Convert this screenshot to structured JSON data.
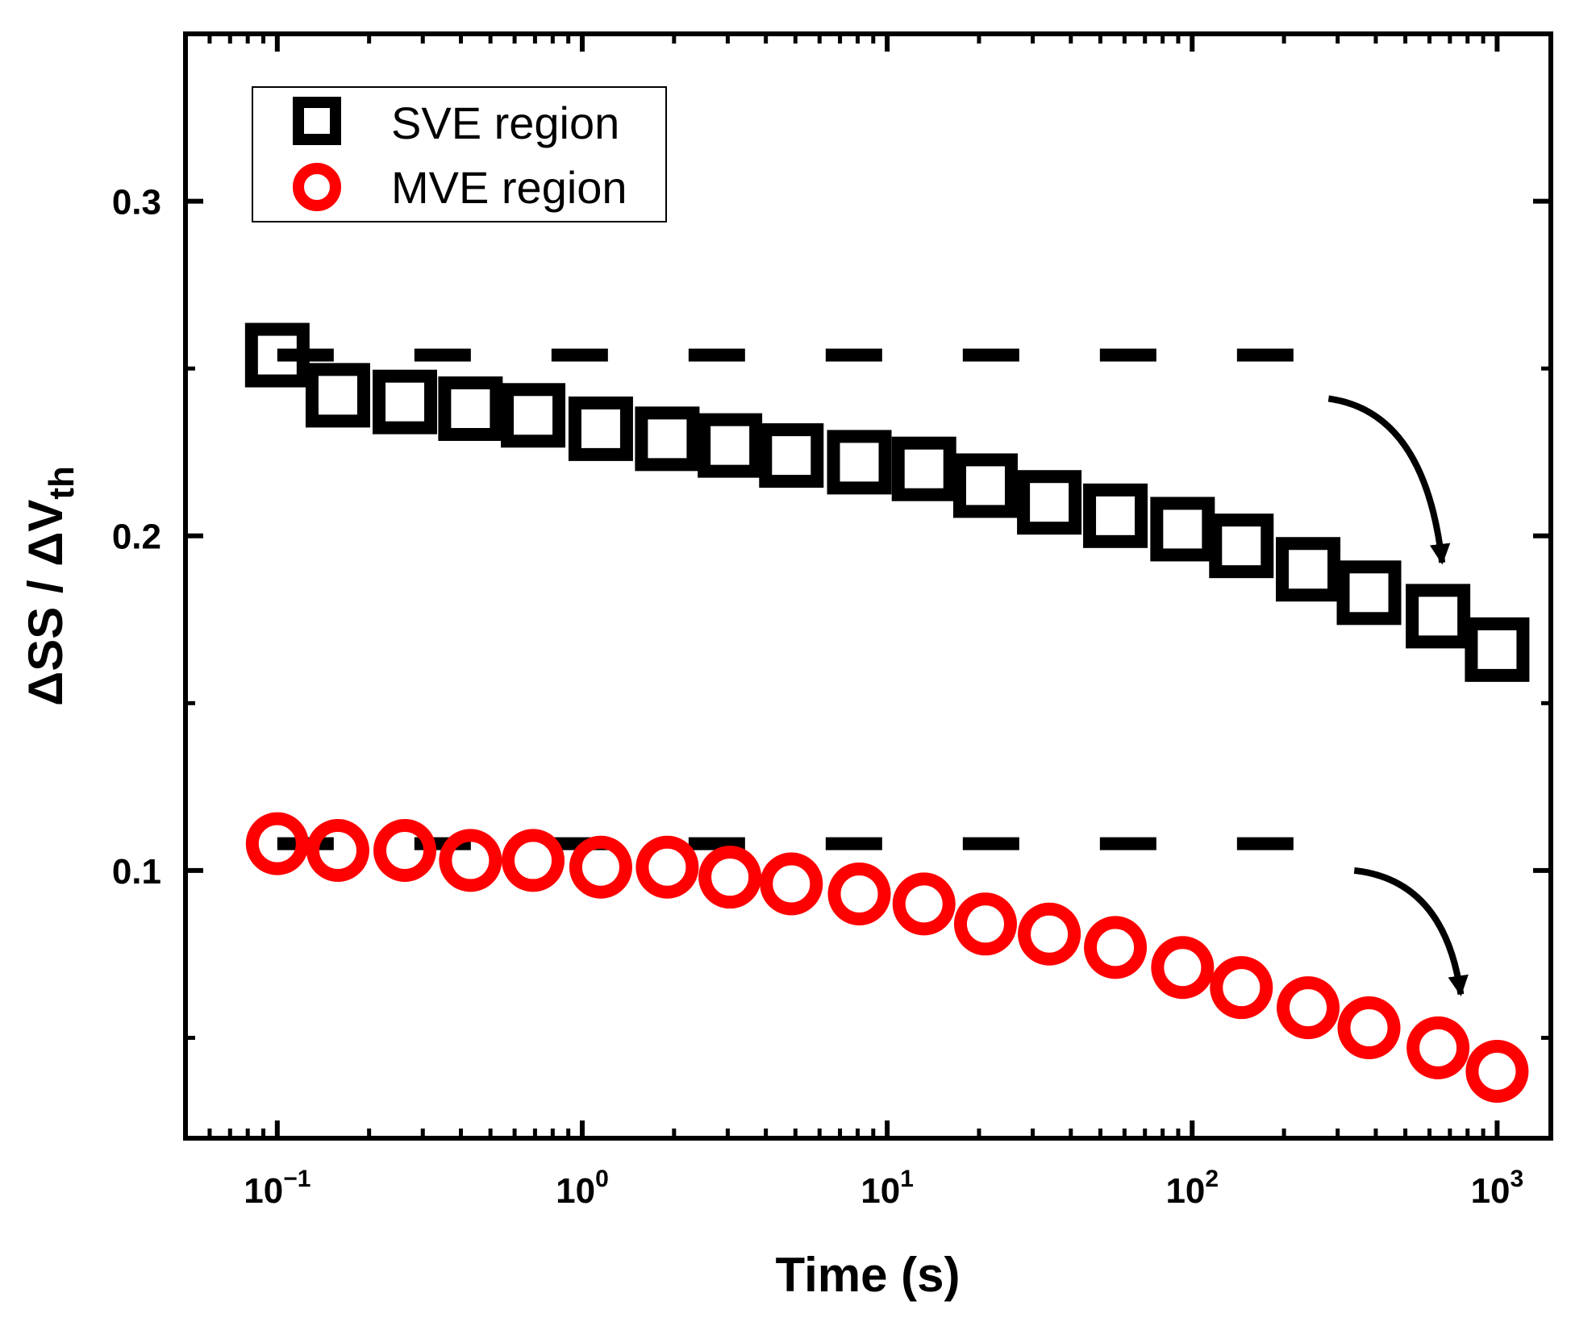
{
  "chart_data": {
    "type": "scatter",
    "title": "",
    "xlabel": "Time (s)",
    "ylabel": {
      "prefix": "ΔSS / ΔV",
      "subscript": "th"
    },
    "xscale": "log",
    "xlim": [
      0.05,
      1500
    ],
    "ylim": [
      0.02,
      0.35
    ],
    "xticks": [
      {
        "value": 0.1,
        "base": "10",
        "exp": "−1"
      },
      {
        "value": 1,
        "base": "10",
        "exp": "0"
      },
      {
        "value": 10,
        "base": "10",
        "exp": "1"
      },
      {
        "value": 100,
        "base": "10",
        "exp": "2"
      },
      {
        "value": 1000,
        "base": "10",
        "exp": "3"
      }
    ],
    "yticks": [
      {
        "value": 0.1,
        "label": "0.1"
      },
      {
        "value": 0.2,
        "label": "0.2"
      },
      {
        "value": 0.3,
        "label": "0.3"
      }
    ],
    "y_minor_ticks": [
      0.05,
      0.15,
      0.25
    ],
    "legend_position": "top-left",
    "series": [
      {
        "name": "SVE region",
        "marker": "square",
        "color": "#000000",
        "x": [
          0.1,
          0.158,
          0.262,
          0.43,
          0.69,
          1.15,
          1.9,
          3.05,
          4.85,
          8.1,
          13.2,
          21,
          34,
          56,
          93,
          145,
          240,
          380,
          640,
          1000
        ],
        "y": [
          0.254,
          0.242,
          0.24,
          0.238,
          0.236,
          0.232,
          0.229,
          0.227,
          0.224,
          0.222,
          0.22,
          0.215,
          0.21,
          0.206,
          0.202,
          0.197,
          0.19,
          0.183,
          0.176,
          0.166
        ]
      },
      {
        "name": "MVE region",
        "marker": "circle",
        "color": "#ff0000",
        "x": [
          0.1,
          0.158,
          0.262,
          0.43,
          0.69,
          1.15,
          1.9,
          3.05,
          4.85,
          8.1,
          13.2,
          21,
          34,
          56,
          93,
          145,
          240,
          380,
          640,
          1000
        ],
        "y": [
          0.108,
          0.106,
          0.106,
          0.103,
          0.103,
          0.101,
          0.101,
          0.098,
          0.096,
          0.093,
          0.09,
          0.084,
          0.081,
          0.077,
          0.071,
          0.065,
          0.059,
          0.053,
          0.047,
          0.04
        ]
      }
    ],
    "reference_lines": [
      {
        "y": 0.254,
        "x_from": 0.1,
        "x_to": 280,
        "style": "dashed",
        "color": "#000000"
      },
      {
        "y": 0.108,
        "x_from": 0.1,
        "x_to": 280,
        "style": "dashed",
        "color": "#000000"
      }
    ],
    "annotations": [
      {
        "type": "curved-arrow",
        "color": "#000000",
        "from": {
          "x": 280,
          "y": 0.241
        },
        "to": {
          "x": 660,
          "y": 0.192
        }
      },
      {
        "type": "curved-arrow",
        "color": "#000000",
        "from": {
          "x": 340,
          "y": 0.1
        },
        "to": {
          "x": 760,
          "y": 0.063
        }
      }
    ]
  }
}
